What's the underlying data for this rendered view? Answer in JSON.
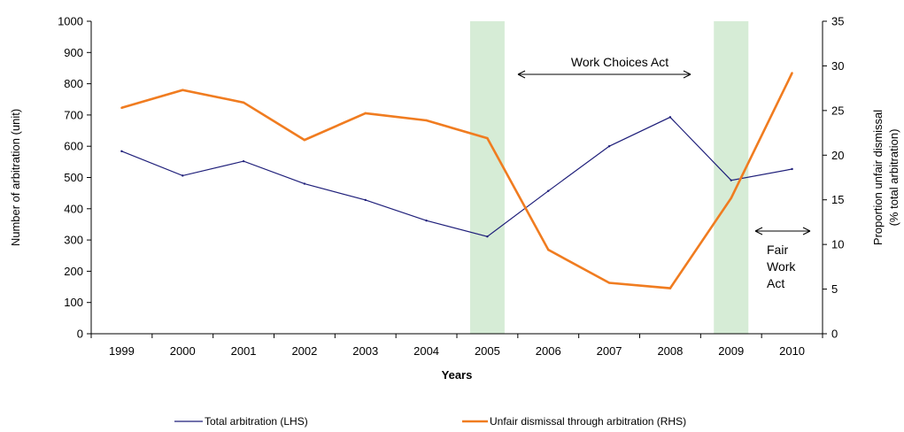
{
  "chart_data": {
    "type": "line",
    "categories": [
      "1999",
      "2000",
      "2001",
      "2002",
      "2003",
      "2004",
      "2005",
      "2006",
      "2007",
      "2008",
      "2009",
      "2010"
    ],
    "series": [
      {
        "name": "Total arbitration (LHS)",
        "axis": "left",
        "color": "#1f1f7a",
        "values": [
          584,
          506,
          552,
          480,
          428,
          362,
          311,
          457,
          600,
          693,
          491,
          527
        ]
      },
      {
        "name": "Unfair dismissal through arbitration (RHS)",
        "axis": "right",
        "color": "#f07c20",
        "values": [
          25.3,
          27.3,
          25.9,
          21.7,
          24.7,
          23.9,
          21.9,
          9.4,
          5.7,
          5.1,
          15.2,
          29.2
        ]
      }
    ],
    "xlabel": "Years",
    "ylabel": "Number of arbitration (unit)",
    "ylabel_right_line1": "Proportion unfair dismissal",
    "ylabel_right_line2": "(% total arbitration)",
    "ylim": [
      0,
      1000
    ],
    "ylim_right": [
      0,
      35
    ],
    "yticks": [
      "0",
      "100",
      "200",
      "300",
      "400",
      "500",
      "600",
      "700",
      "800",
      "900",
      "1000"
    ],
    "yticks_right": [
      "0",
      "5",
      "10",
      "15",
      "20",
      "25",
      "30",
      "35"
    ],
    "shaded_bands": [
      "2005",
      "2009"
    ],
    "shade_color": "#d6ecd6",
    "annotations": {
      "work_choices": "Work Choices Act",
      "fair_work_lines": [
        "Fair",
        "Work",
        "Act"
      ]
    },
    "grid": false,
    "legend_position": "bottom"
  }
}
